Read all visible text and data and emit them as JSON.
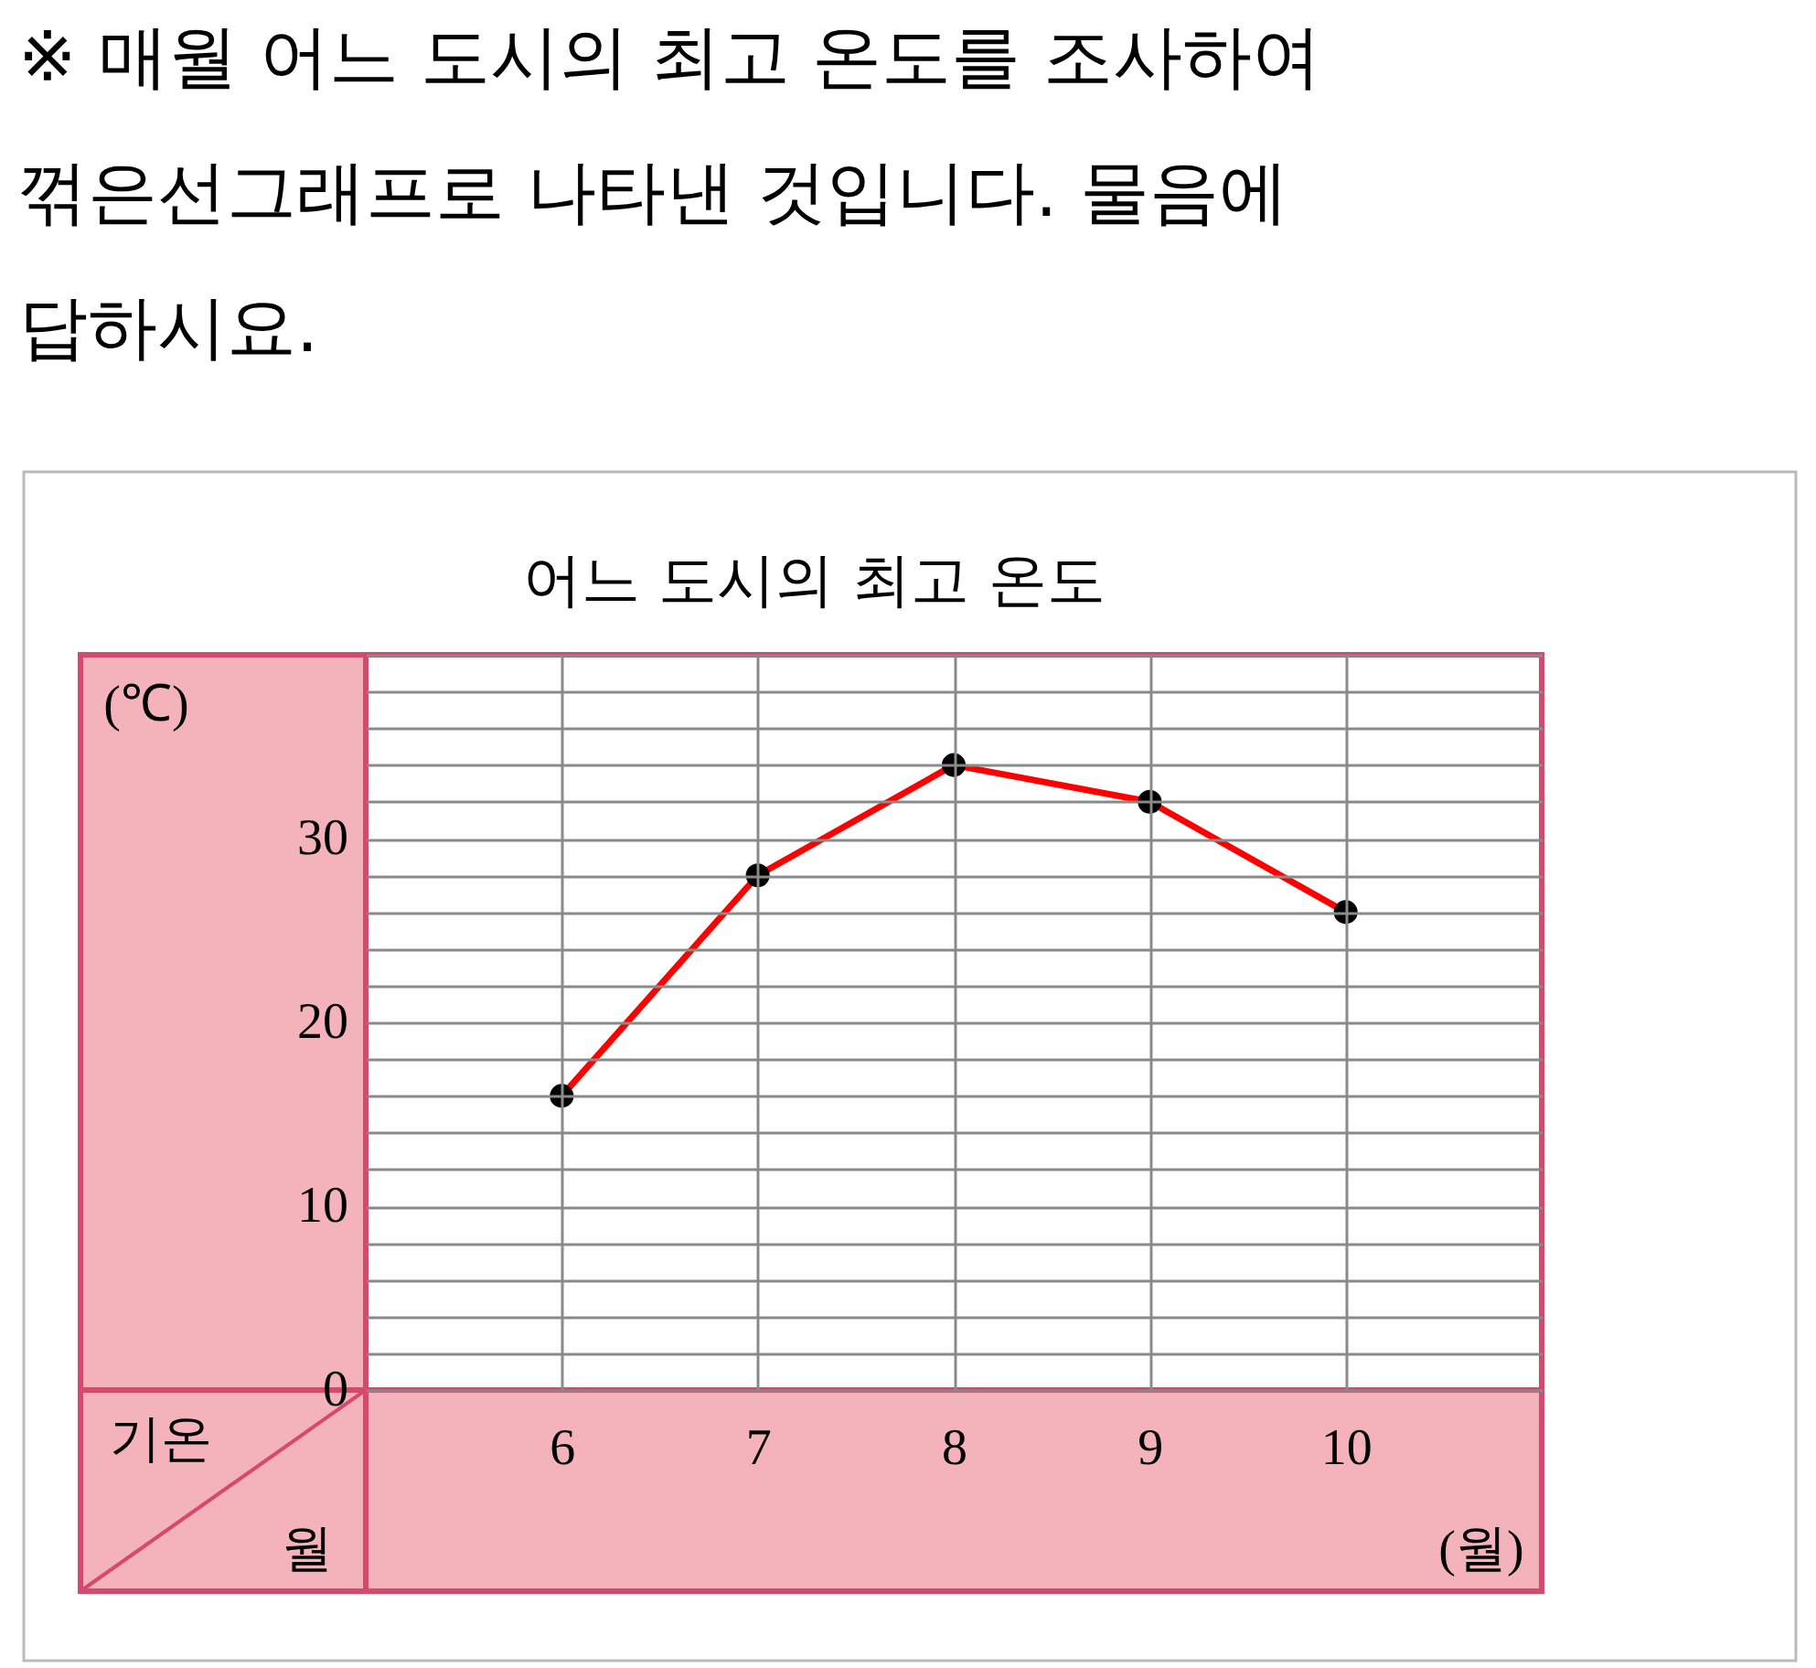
{
  "chart_data": {
    "type": "line",
    "title": "어느 도시의 최고 온도",
    "ylabel": "(℃)",
    "xlabel": "(월)",
    "annotations": [
      "※ 매월 어느 도시의 최고 온도를 조사하여 꺾은선그래프로 나타낸 것입니다. 물음에 답하시요.",
      "기온",
      "월"
    ],
    "x": [
      6,
      7,
      8,
      9,
      10
    ],
    "xlim": [
      5,
      11
    ],
    "xticks": [
      6,
      7,
      8,
      9,
      10
    ],
    "series": [
      {
        "color": "#ff0000",
        "values": [
          16,
          28,
          34,
          32,
          26
        ]
      }
    ],
    "ylim": [
      0,
      40
    ],
    "yticks": [
      0,
      {
        "value": 2,
        "label": null
      },
      {
        "value": 4,
        "label": null
      },
      {
        "value": 6,
        "label": null
      },
      {
        "value": 8,
        "label": null
      },
      10,
      {
        "value": 12,
        "label": null
      },
      {
        "value": 14,
        "label": null
      },
      {
        "value": 16,
        "label": null
      },
      {
        "value": 18,
        "label": null
      },
      20,
      {
        "value": 22,
        "label": null
      },
      {
        "value": 24,
        "label": null
      },
      {
        "value": 26,
        "label": null
      },
      {
        "value": 28,
        "label": null
      },
      30,
      {
        "value": 32,
        "label": null
      },
      {
        "value": 34,
        "label": null
      },
      {
        "value": 36,
        "label": null
      },
      {
        "value": 38,
        "label": null
      },
      {
        "value": 40,
        "label": null
      }
    ],
    "grid": true,
    "marker": "circle",
    "line_style": "solid"
  }
}
